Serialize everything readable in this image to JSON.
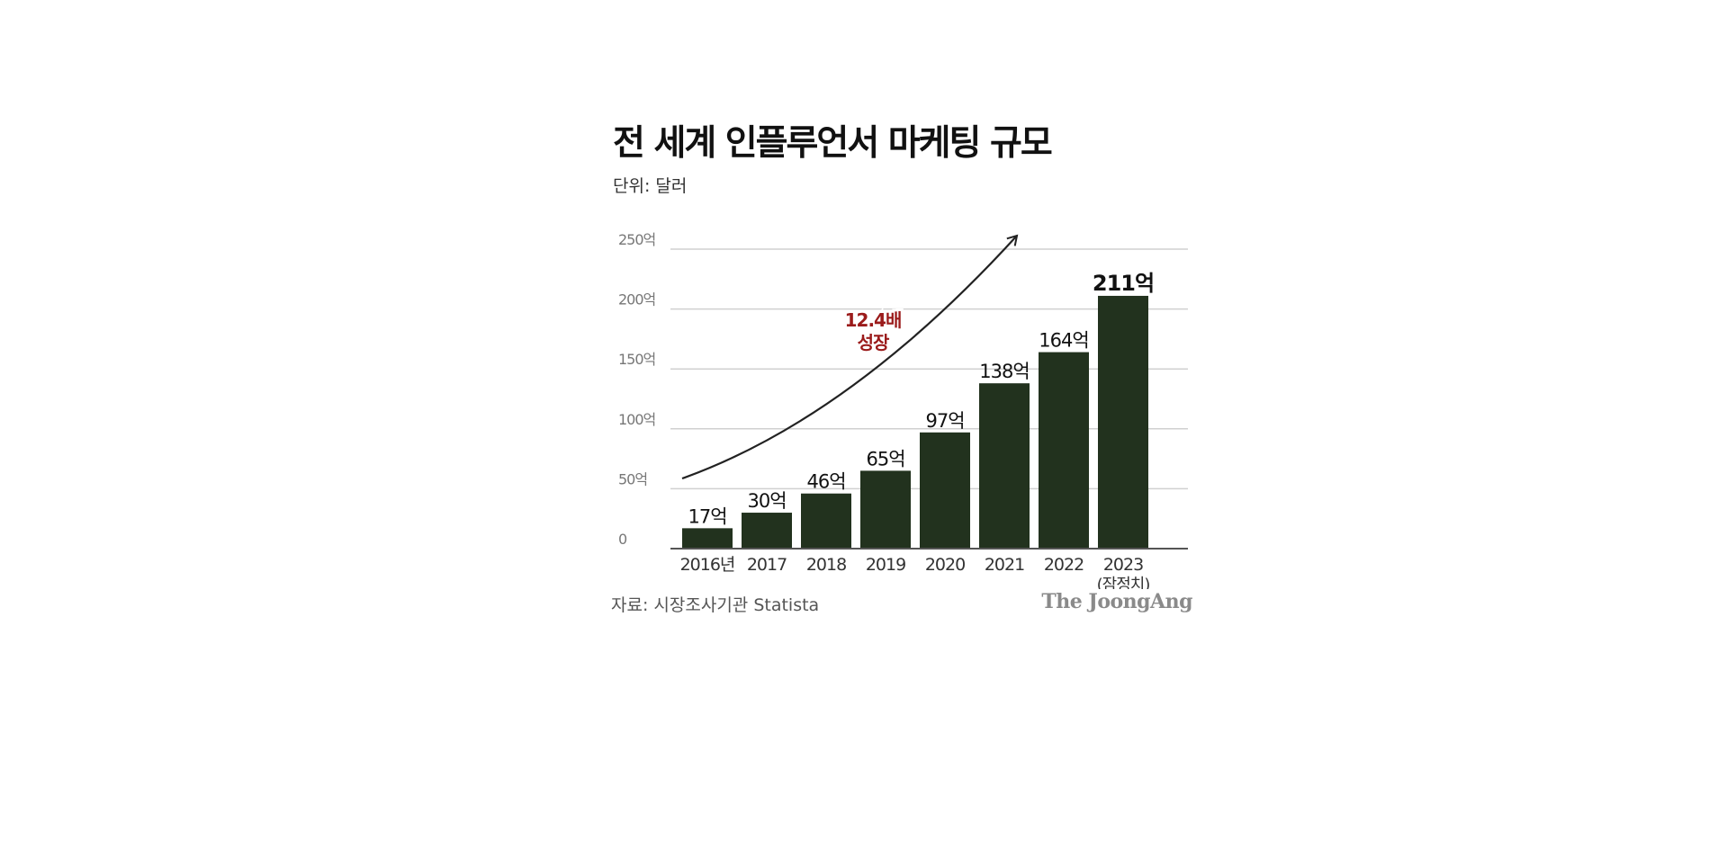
{
  "title": "전 세계 인플루언서 마케팅 규모",
  "unit": "단위: 달러",
  "source": "자료: 시장조사기관 Statista",
  "brand": "The JoongAng",
  "colors": {
    "bar": "#22321e",
    "grid": "#d0d0d0",
    "axis": "#555555",
    "annotation": "#9b1b1b",
    "arrow": "#222222"
  },
  "chart_data": {
    "type": "bar",
    "categories": [
      "2016년",
      "2017",
      "2018",
      "2019",
      "2020",
      "2021",
      "2022",
      "2023"
    ],
    "category_notes": [
      "",
      "",
      "",
      "",
      "",
      "",
      "",
      "(잠정치)"
    ],
    "values": [
      17,
      30,
      46,
      65,
      97,
      138,
      164,
      211
    ],
    "value_labels": [
      "17억",
      "30억",
      "46억",
      "65억",
      "97억",
      "138억",
      "164억",
      "211억"
    ],
    "y_ticks": [
      0,
      50,
      100,
      150,
      200,
      250
    ],
    "y_tick_labels": [
      "0",
      "50억",
      "100억",
      "150억",
      "200억",
      "250억"
    ],
    "ylim": [
      0,
      250
    ],
    "grid": true,
    "annotation": {
      "lines": [
        "12.4배",
        "성장"
      ]
    }
  }
}
